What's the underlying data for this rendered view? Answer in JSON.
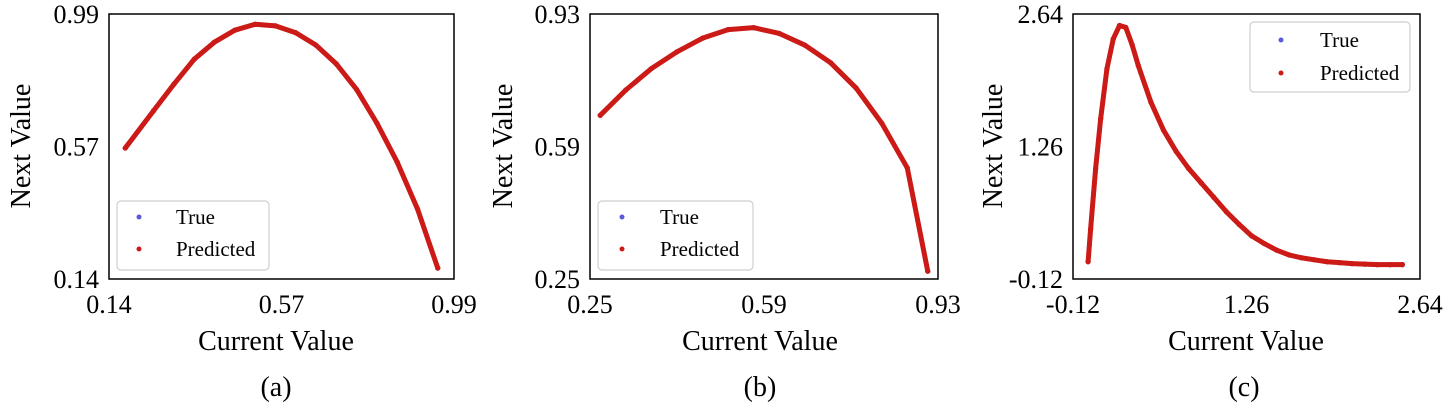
{
  "chart_data": [
    {
      "type": "scatter",
      "caption": "(a)",
      "xlabel": "Current Value",
      "ylabel": "Next Value",
      "xlim": [
        0.14,
        0.99
      ],
      "ylim": [
        0.14,
        0.99
      ],
      "xticks": [
        0.14,
        0.57,
        0.99
      ],
      "yticks": [
        0.14,
        0.57,
        0.99
      ],
      "xtick_labels": [
        "0.14",
        "0.57",
        "0.99"
      ],
      "ytick_labels": [
        "0.14",
        "0.57",
        "0.99"
      ],
      "legend": "lower-left",
      "series": [
        {
          "name": "True",
          "color": "#5b5bd6",
          "x": [
            0.18,
            0.25,
            0.3,
            0.35,
            0.4,
            0.45,
            0.5,
            0.55,
            0.6,
            0.65,
            0.7,
            0.75,
            0.8,
            0.85,
            0.9,
            0.95
          ],
          "y": [
            0.56,
            0.68,
            0.765,
            0.845,
            0.9,
            0.938,
            0.957,
            0.952,
            0.93,
            0.89,
            0.83,
            0.748,
            0.64,
            0.515,
            0.365,
            0.175
          ]
        },
        {
          "name": "Predicted",
          "color": "#cc1a16",
          "x": [
            0.18,
            0.25,
            0.3,
            0.35,
            0.4,
            0.45,
            0.5,
            0.55,
            0.6,
            0.65,
            0.7,
            0.75,
            0.8,
            0.85,
            0.9,
            0.95
          ],
          "y": [
            0.56,
            0.68,
            0.765,
            0.845,
            0.9,
            0.938,
            0.957,
            0.952,
            0.93,
            0.89,
            0.83,
            0.748,
            0.64,
            0.515,
            0.365,
            0.175
          ]
        }
      ]
    },
    {
      "type": "scatter",
      "caption": "(b)",
      "xlabel": "Current Value",
      "ylabel": "Next Value",
      "xlim": [
        0.25,
        0.93
      ],
      "ylim": [
        0.25,
        0.93
      ],
      "xticks": [
        0.25,
        0.59,
        0.93
      ],
      "yticks": [
        0.25,
        0.59,
        0.93
      ],
      "xtick_labels": [
        "0.25",
        "0.59",
        "0.93"
      ],
      "ytick_labels": [
        "0.25",
        "0.59",
        "0.93"
      ],
      "legend": "lower-left",
      "series": [
        {
          "name": "True",
          "color": "#5b5bd6",
          "x": [
            0.27,
            0.32,
            0.37,
            0.42,
            0.47,
            0.52,
            0.57,
            0.62,
            0.67,
            0.72,
            0.77,
            0.82,
            0.87,
            0.91
          ],
          "y": [
            0.67,
            0.735,
            0.79,
            0.833,
            0.868,
            0.89,
            0.895,
            0.88,
            0.85,
            0.805,
            0.74,
            0.65,
            0.535,
            0.27
          ]
        },
        {
          "name": "Predicted",
          "color": "#cc1a16",
          "x": [
            0.27,
            0.32,
            0.37,
            0.42,
            0.47,
            0.52,
            0.57,
            0.62,
            0.67,
            0.72,
            0.77,
            0.82,
            0.87,
            0.91
          ],
          "y": [
            0.67,
            0.735,
            0.79,
            0.833,
            0.868,
            0.89,
            0.895,
            0.88,
            0.85,
            0.805,
            0.74,
            0.65,
            0.535,
            0.27
          ]
        }
      ]
    },
    {
      "type": "scatter",
      "caption": "(c)",
      "xlabel": "Current Value",
      "ylabel": "Next Value",
      "xlim": [
        -0.12,
        2.64
      ],
      "ylim": [
        -0.12,
        2.64
      ],
      "xticks": [
        -0.12,
        1.26,
        2.64
      ],
      "yticks": [
        -0.12,
        1.26,
        2.64
      ],
      "xtick_labels": [
        "-0.12",
        "1.26",
        "2.64"
      ],
      "ytick_labels": [
        "-0.12",
        "1.26",
        "2.64"
      ],
      "legend": "top-right",
      "series": [
        {
          "name": "True",
          "color": "#5b5bd6",
          "x": [
            0.0,
            0.02,
            0.06,
            0.1,
            0.15,
            0.2,
            0.25,
            0.3,
            0.35,
            0.4,
            0.5,
            0.6,
            0.7,
            0.8,
            0.9,
            1.0,
            1.1,
            1.2,
            1.3,
            1.4,
            1.5,
            1.6,
            1.7,
            1.8,
            1.9,
            2.0,
            2.1,
            2.2,
            2.3,
            2.4,
            2.5
          ],
          "y": [
            0.06,
            0.4,
            1.03,
            1.55,
            2.07,
            2.38,
            2.52,
            2.5,
            2.32,
            2.1,
            1.72,
            1.43,
            1.21,
            1.03,
            0.88,
            0.73,
            0.58,
            0.45,
            0.33,
            0.25,
            0.18,
            0.13,
            0.1,
            0.08,
            0.06,
            0.05,
            0.04,
            0.035,
            0.03,
            0.03,
            0.03
          ]
        },
        {
          "name": "Predicted",
          "color": "#cc1a16",
          "x": [
            0.0,
            0.02,
            0.06,
            0.1,
            0.15,
            0.2,
            0.25,
            0.3,
            0.35,
            0.4,
            0.5,
            0.6,
            0.7,
            0.8,
            0.9,
            1.0,
            1.1,
            1.2,
            1.3,
            1.4,
            1.5,
            1.6,
            1.7,
            1.8,
            1.9,
            2.0,
            2.1,
            2.2,
            2.3,
            2.4,
            2.5
          ],
          "y": [
            0.06,
            0.4,
            1.03,
            1.55,
            2.07,
            2.38,
            2.52,
            2.5,
            2.32,
            2.1,
            1.72,
            1.43,
            1.21,
            1.03,
            0.88,
            0.73,
            0.58,
            0.45,
            0.33,
            0.25,
            0.18,
            0.13,
            0.1,
            0.08,
            0.06,
            0.05,
            0.04,
            0.035,
            0.03,
            0.03,
            0.03
          ]
        }
      ]
    }
  ]
}
